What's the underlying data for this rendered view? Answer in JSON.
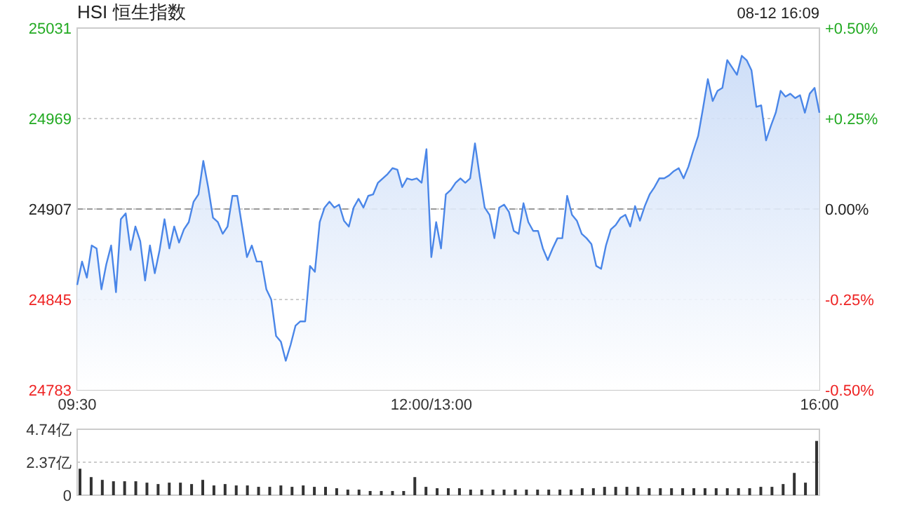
{
  "chart_data": [
    {
      "type": "area",
      "title": "HSI 恒生指数",
      "annotations": [
        "08-12 16:09"
      ],
      "categories": [
        "09:30",
        null,
        null,
        null,
        null,
        null,
        null,
        null,
        null,
        null,
        null,
        null,
        null,
        null,
        null,
        null,
        null,
        null,
        null,
        null,
        null,
        null,
        null,
        null,
        null,
        null,
        null,
        null,
        null,
        null,
        null,
        null,
        null,
        null,
        null,
        null,
        null,
        null,
        null,
        null,
        null,
        null,
        null,
        null,
        null,
        null,
        null,
        null,
        null,
        null,
        null,
        null,
        null,
        null,
        null,
        null,
        null,
        null,
        null,
        null,
        null,
        null,
        null,
        null,
        null,
        null,
        null,
        null,
        null,
        null,
        null,
        null,
        null,
        "12:00/13:00",
        null,
        null,
        null,
        null,
        null,
        null,
        null,
        null,
        null,
        null,
        null,
        null,
        null,
        null,
        null,
        null,
        null,
        null,
        null,
        null,
        null,
        null,
        null,
        null,
        null,
        null,
        null,
        null,
        null,
        null,
        null,
        null,
        null,
        null,
        null,
        null,
        null,
        null,
        null,
        null,
        null,
        null,
        null,
        null,
        null,
        null,
        null,
        null,
        null,
        null,
        null,
        null,
        null,
        null,
        null,
        null,
        null,
        null,
        null,
        null,
        null,
        null,
        null,
        null,
        null,
        null,
        null,
        null,
        null,
        null,
        null,
        null,
        null,
        null,
        null,
        null,
        null,
        null,
        null,
        "16:00"
      ],
      "series": [
        {
          "color": "#4a86e8",
          "values": [
            24855,
            24871,
            24860,
            24882,
            24880,
            24852,
            24869,
            24882,
            24850,
            24900,
            24904,
            24879,
            24895,
            24885,
            24858,
            24882,
            24863,
            24879,
            24900,
            24880,
            24895,
            24884,
            24893,
            24898,
            24912,
            24917,
            24940,
            24922,
            24901,
            24898,
            24890,
            24895,
            24916,
            24916,
            24895,
            24874,
            24882,
            24871,
            24871,
            24852,
            24845,
            24820,
            24816,
            24803,
            24814,
            24827,
            24830,
            24830,
            24868,
            24864,
            24898,
            24908,
            24912,
            24908,
            24910,
            24899,
            24895,
            24908,
            24914,
            24908,
            24916,
            24917,
            24925,
            24928,
            24931,
            24935,
            24934,
            24922,
            24928,
            24927,
            24928,
            24925,
            24948,
            24874,
            24898,
            24880,
            24917,
            24920,
            24925,
            24928,
            24925,
            24928,
            24952,
            24929,
            24908,
            24903,
            24887,
            24908,
            24910,
            24905,
            24892,
            24890,
            24911,
            24898,
            24892,
            24892,
            24880,
            24872,
            24880,
            24887,
            24887,
            24916,
            24903,
            24899,
            24890,
            24887,
            24883,
            24868,
            24866,
            24882,
            24893,
            24896,
            24901,
            24903,
            24895,
            24909,
            24899,
            24909,
            24917,
            24922,
            24928,
            24928,
            24930,
            24933,
            24935,
            24928,
            24936,
            24947,
            24957,
            24976,
            24996,
            24981,
            24988,
            24990,
            25009,
            25004,
            24999,
            25012,
            25009,
            25002,
            24977,
            24978,
            24954,
            24964,
            24973,
            24988,
            24984,
            24986,
            24983,
            24985,
            24973,
            24986,
            24990,
            24973
          ]
        }
      ],
      "ylim": [
        24783,
        25031
      ],
      "yticks": [
        24783,
        24845,
        24907,
        24969,
        25031
      ],
      "y2lim": [
        -0.5,
        0.5
      ],
      "y2ticks": [
        {
          "value": -0.5,
          "label": "-0.50%"
        },
        {
          "value": -0.25,
          "label": "-0.25%"
        },
        {
          "value": 0,
          "label": "0.00%"
        },
        {
          "value": 0.25,
          "label": "+0.25%"
        },
        {
          "value": 0.5,
          "label": "+0.50%"
        }
      ],
      "ref_lines": [
        {
          "axis": "y",
          "value": 24907,
          "color": "#999999",
          "line_style": "dashed"
        }
      ],
      "grid": "y"
    },
    {
      "type": "bar",
      "color": "#333333",
      "categories": [
        null,
        null,
        null,
        null,
        null,
        null,
        null,
        null,
        null,
        null,
        null,
        null,
        null,
        null,
        null,
        null,
        null,
        null,
        null,
        null,
        null,
        null,
        null,
        null,
        null,
        null,
        null,
        null,
        null,
        null,
        null,
        null,
        null,
        null,
        null,
        null,
        null,
        null,
        null,
        null,
        null,
        null,
        null,
        null,
        null,
        null,
        null,
        null,
        null,
        null,
        null,
        null,
        null,
        null,
        null,
        null,
        null,
        null,
        null,
        null,
        null,
        null,
        null,
        null,
        null,
        null,
        null
      ],
      "values": [
        1.9,
        1.3,
        1.1,
        1.0,
        1.0,
        1.0,
        0.9,
        0.8,
        0.9,
        0.9,
        0.8,
        1.1,
        0.7,
        0.8,
        0.7,
        0.7,
        0.6,
        0.6,
        0.7,
        0.6,
        0.7,
        0.6,
        0.6,
        0.5,
        0.4,
        0.4,
        0.3,
        0.3,
        0.3,
        0.3,
        1.3,
        0.6,
        0.5,
        0.5,
        0.5,
        0.4,
        0.4,
        0.4,
        0.4,
        0.4,
        0.4,
        0.4,
        0.4,
        0.4,
        0.4,
        0.5,
        0.5,
        0.6,
        0.6,
        0.6,
        0.6,
        0.5,
        0.5,
        0.5,
        0.5,
        0.5,
        0.5,
        0.5,
        0.5,
        0.5,
        0.5,
        0.6,
        0.6,
        0.8,
        1.6,
        0.9,
        3.9
      ],
      "ylim": [
        0,
        4.74
      ],
      "yticks": [
        0,
        {
          "value": 2.37,
          "label": "2.37亿"
        },
        {
          "value": 4.74,
          "label": "4.74亿"
        }
      ],
      "grid": "y",
      "tick_labels": "y"
    }
  ]
}
